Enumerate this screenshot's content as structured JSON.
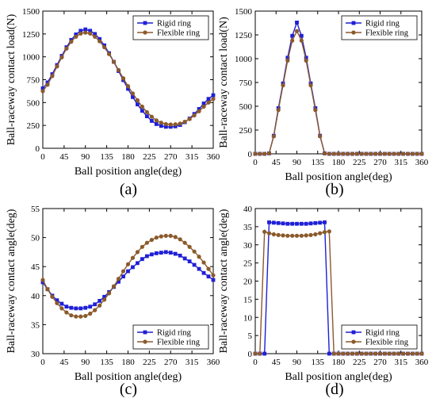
{
  "chart_data": [
    {
      "type": "line",
      "panel_label": "(a)",
      "xlabel": "Ball position angle(deg)",
      "ylabel": "Ball-raceway contact load(N)",
      "xlim": [
        0,
        360
      ],
      "ylim": [
        0,
        1500
      ],
      "xticks": [
        0,
        45,
        90,
        135,
        180,
        225,
        270,
        315,
        360
      ],
      "yticks": [
        0,
        250,
        500,
        750,
        1000,
        1250,
        1500
      ],
      "legend_position": "top-right",
      "x": [
        0,
        10,
        20,
        30,
        40,
        50,
        60,
        70,
        80,
        90,
        100,
        110,
        120,
        130,
        140,
        150,
        160,
        170,
        180,
        190,
        200,
        210,
        220,
        230,
        240,
        250,
        260,
        270,
        280,
        290,
        300,
        310,
        320,
        330,
        340,
        350,
        360
      ],
      "series": [
        {
          "name": "Rigid ring",
          "color": "#1f1fd6",
          "marker": "square",
          "values": [
            655,
            720,
            810,
            910,
            1010,
            1105,
            1185,
            1245,
            1285,
            1300,
            1285,
            1250,
            1195,
            1125,
            1040,
            945,
            845,
            745,
            650,
            560,
            480,
            410,
            350,
            300,
            265,
            245,
            235,
            235,
            240,
            255,
            285,
            325,
            375,
            430,
            490,
            540,
            580
          ]
        },
        {
          "name": "Flexible ring",
          "color": "#8b5a2b",
          "marker": "circle",
          "values": [
            625,
            695,
            790,
            895,
            995,
            1090,
            1165,
            1220,
            1255,
            1265,
            1255,
            1220,
            1170,
            1105,
            1030,
            945,
            855,
            765,
            680,
            600,
            525,
            455,
            395,
            345,
            305,
            280,
            265,
            260,
            262,
            270,
            290,
            320,
            360,
            405,
            455,
            500,
            540
          ]
        }
      ]
    },
    {
      "type": "line",
      "panel_label": "(b)",
      "xlabel": "Ball position angle(deg)",
      "ylabel": "Ball-raceway contact load(N)",
      "xlim": [
        0,
        360
      ],
      "ylim": [
        0,
        1500
      ],
      "xticks": [
        0,
        45,
        90,
        135,
        180,
        225,
        270,
        315,
        360
      ],
      "yticks": [
        0,
        250,
        500,
        750,
        1000,
        1250,
        1500
      ],
      "legend_position": "top-right",
      "x": [
        0,
        10,
        20,
        30,
        40,
        50,
        60,
        70,
        80,
        90,
        100,
        110,
        120,
        130,
        140,
        150,
        160,
        170,
        180,
        190,
        200,
        210,
        220,
        230,
        240,
        250,
        260,
        270,
        280,
        290,
        300,
        310,
        320,
        330,
        340,
        350,
        360
      ],
      "series": [
        {
          "name": "Rigid ring",
          "color": "#1f1fd6",
          "marker": "square",
          "values": [
            0,
            0,
            0,
            5,
            190,
            480,
            740,
            1010,
            1240,
            1380,
            1240,
            1010,
            740,
            480,
            190,
            5,
            0,
            0,
            0,
            0,
            0,
            0,
            0,
            0,
            0,
            0,
            0,
            0,
            0,
            0,
            0,
            0,
            0,
            0,
            0,
            0,
            0
          ]
        },
        {
          "name": "Flexible ring",
          "color": "#8b5a2b",
          "marker": "circle",
          "values": [
            0,
            0,
            0,
            5,
            185,
            460,
            720,
            980,
            1190,
            1290,
            1190,
            980,
            720,
            460,
            185,
            5,
            0,
            0,
            0,
            0,
            0,
            0,
            0,
            0,
            0,
            0,
            0,
            0,
            0,
            0,
            0,
            0,
            0,
            0,
            0,
            0,
            0
          ]
        }
      ]
    },
    {
      "type": "line",
      "panel_label": "(c)",
      "xlabel": "Ball position angle(deg)",
      "ylabel": "Ball-raceway contact angle(deg)",
      "xlim": [
        0,
        360
      ],
      "ylim": [
        30,
        55
      ],
      "xticks": [
        0,
        45,
        90,
        135,
        180,
        225,
        270,
        315,
        360
      ],
      "yticks": [
        30,
        35,
        40,
        45,
        50,
        55
      ],
      "legend_position": "bottom-right",
      "x": [
        0,
        10,
        20,
        30,
        40,
        50,
        60,
        70,
        80,
        90,
        100,
        110,
        120,
        130,
        140,
        150,
        160,
        170,
        180,
        190,
        200,
        210,
        220,
        230,
        240,
        250,
        260,
        270,
        280,
        290,
        300,
        310,
        320,
        330,
        340,
        350,
        360
      ],
      "series": [
        {
          "name": "Rigid ring",
          "color": "#1f1fd6",
          "marker": "square",
          "values": [
            42.3,
            41.1,
            40.0,
            39.2,
            38.6,
            38.1,
            37.9,
            37.8,
            37.8,
            37.9,
            38.1,
            38.5,
            39.1,
            39.8,
            40.6,
            41.5,
            42.4,
            43.3,
            44.2,
            44.9,
            45.6,
            46.3,
            46.8,
            47.1,
            47.3,
            47.4,
            47.5,
            47.4,
            47.2,
            46.9,
            46.4,
            45.9,
            45.3,
            44.6,
            43.9,
            43.3,
            42.7
          ]
        },
        {
          "name": "Flexible ring",
          "color": "#8b5a2b",
          "marker": "circle",
          "values": [
            42.7,
            41.1,
            39.8,
            38.7,
            37.8,
            37.1,
            36.6,
            36.4,
            36.4,
            36.5,
            36.9,
            37.5,
            38.3,
            39.3,
            40.4,
            41.6,
            42.9,
            44.2,
            45.4,
            46.5,
            47.5,
            48.4,
            49.1,
            49.6,
            50.0,
            50.2,
            50.3,
            50.3,
            50.1,
            49.7,
            49.1,
            48.4,
            47.6,
            46.7,
            45.7,
            44.6,
            43.5
          ]
        }
      ]
    },
    {
      "type": "line",
      "panel_label": "(d)",
      "xlabel": "Ball position angle(deg)",
      "ylabel": "Ball-raceway contact angle(deg)",
      "xlim": [
        0,
        360
      ],
      "ylim": [
        0,
        40
      ],
      "xticks": [
        0,
        45,
        90,
        135,
        180,
        225,
        270,
        315,
        360
      ],
      "yticks": [
        0,
        5,
        10,
        15,
        20,
        25,
        30,
        35,
        40
      ],
      "legend_position": "bottom-right",
      "x": [
        0,
        10,
        20,
        30,
        40,
        50,
        60,
        70,
        80,
        90,
        100,
        110,
        120,
        130,
        140,
        150,
        160,
        170,
        180,
        190,
        200,
        210,
        220,
        230,
        240,
        250,
        260,
        270,
        280,
        290,
        300,
        310,
        320,
        330,
        340,
        350,
        360
      ],
      "series": [
        {
          "name": "Rigid ring",
          "color": "#1f1fd6",
          "marker": "square",
          "values": [
            0,
            0,
            0,
            36.2,
            36.1,
            36.0,
            35.9,
            35.8,
            35.8,
            35.8,
            35.8,
            35.8,
            35.9,
            36.0,
            36.1,
            36.2,
            0,
            0,
            0,
            0,
            0,
            0,
            0,
            0,
            0,
            0,
            0,
            0,
            0,
            0,
            0,
            0,
            0,
            0,
            0,
            0,
            0
          ]
        },
        {
          "name": "Flexible ring",
          "color": "#8b5a2b",
          "marker": "circle",
          "values": [
            0,
            0,
            33.6,
            33.2,
            32.9,
            32.7,
            32.6,
            32.5,
            32.5,
            32.5,
            32.5,
            32.6,
            32.7,
            32.9,
            33.2,
            33.5,
            33.7,
            0,
            0,
            0,
            0,
            0,
            0,
            0,
            0,
            0,
            0,
            0,
            0,
            0,
            0,
            0,
            0,
            0,
            0,
            0,
            0
          ]
        }
      ]
    }
  ]
}
